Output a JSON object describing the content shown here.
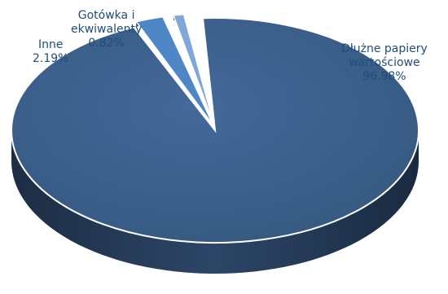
{
  "chart_data": {
    "type": "pie",
    "style": "3d-exploded",
    "slices": [
      {
        "name": "Dłużne papiery wartościowe",
        "name_lines": [
          "Dłużne papiery",
          "wartościowe"
        ],
        "value": 96.98,
        "label": "96.98%",
        "color": "#3b5f8c"
      },
      {
        "name": "Inne",
        "name_lines": [
          "Inne"
        ],
        "value": 2.19,
        "label": "2.19%",
        "color": "#4f86c6"
      },
      {
        "name": "Gotówka i ekwiwalenty",
        "name_lines": [
          "Gotówka i",
          "ekwiwalenty"
        ],
        "value": 0.82,
        "label": "0.82%",
        "color": "#7fa7d8"
      }
    ],
    "label_color": "#1f4e79"
  }
}
